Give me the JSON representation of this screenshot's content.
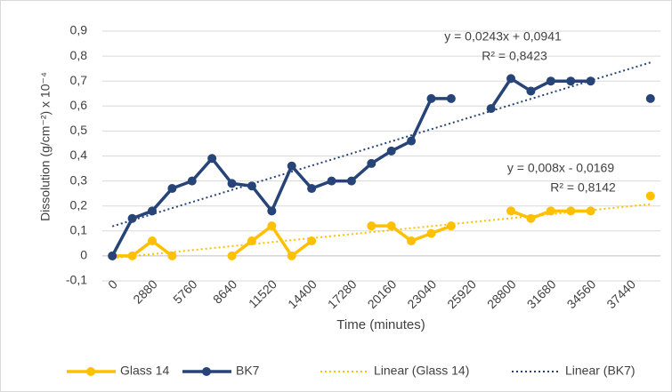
{
  "chart_data": {
    "type": "line",
    "y_label": "Dissolution (g/cm⁻²) x 10⁻⁴",
    "x_label": "Time (minutes)",
    "categories": [
      0,
      null,
      2880,
      null,
      5760,
      null,
      8640,
      null,
      11520,
      null,
      14400,
      null,
      17280,
      null,
      20160,
      null,
      23040,
      null,
      25920,
      null,
      28800,
      null,
      31680,
      null,
      34560,
      null,
      37440,
      null
    ],
    "series": [
      {
        "name": "Glass 14",
        "color": "#ffc000",
        "values": [
          0,
          0,
          0.06,
          0,
          null,
          null,
          0,
          0.06,
          0.12,
          0,
          0.06,
          null,
          null,
          0.12,
          0.12,
          0.06,
          0.09,
          0.12,
          null,
          null,
          0.18,
          0.15,
          0.18,
          0.18,
          0.18,
          null,
          null,
          0.24
        ]
      },
      {
        "name": "BK7",
        "color": "#264478",
        "values": [
          0,
          0.15,
          0.18,
          0.27,
          0.3,
          0.39,
          0.29,
          0.28,
          0.18,
          0.36,
          0.27,
          0.3,
          0.3,
          0.37,
          0.42,
          0.46,
          0.63,
          0.63,
          null,
          0.59,
          0.71,
          0.66,
          0.7,
          0.7,
          0.7,
          null,
          null,
          0.63
        ]
      }
    ],
    "trendlines": [
      {
        "name": "Linear (Glass 14)",
        "color": "#ffc000",
        "slope": 0.008,
        "intercept": -0.0169,
        "equation": "y = 0,008x - 0,0169",
        "r2": "R² = 0,8142"
      },
      {
        "name": "Linear (BK7)",
        "color": "#264478",
        "slope": 0.0243,
        "intercept": 0.0941,
        "equation": "y = 0,0243x + 0,0941",
        "r2": "R² = 0,8423"
      }
    ],
    "ylim": [
      -0.1,
      0.9
    ],
    "yticks": [
      {
        "value": -0.1,
        "label": "-0,1"
      },
      0,
      {
        "value": 0.1,
        "label": "0,1"
      },
      {
        "value": 0.2,
        "label": "0,2"
      },
      {
        "value": 0.3,
        "label": "0,3"
      },
      {
        "value": 0.4,
        "label": "0,4"
      },
      {
        "value": 0.5,
        "label": "0,5"
      },
      {
        "value": 0.6,
        "label": "0,6"
      },
      {
        "value": 0.7,
        "label": "0,7"
      },
      {
        "value": 0.8,
        "label": "0,8"
      },
      {
        "value": 0.9,
        "label": "0,9"
      }
    ],
    "grid": true,
    "legend": "bottom"
  }
}
